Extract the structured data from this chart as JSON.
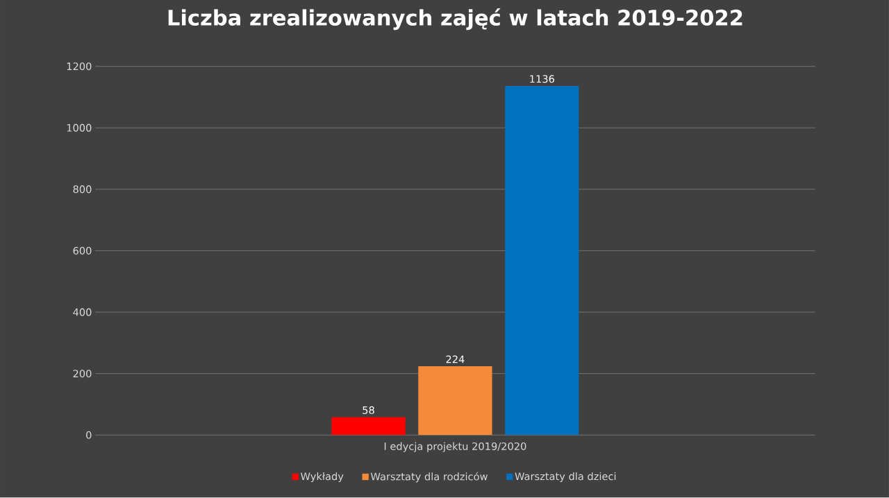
{
  "chart_data": {
    "type": "bar",
    "title": "Liczba zrealizowanych zajęć w latach 2019-2022",
    "categories": [
      "I edycja projektu 2019/2020"
    ],
    "series": [
      {
        "name": "Wykłady",
        "color": "#ff0000",
        "values": [
          58
        ]
      },
      {
        "name": "Warsztaty dla rodziców",
        "color": "#f58a3a",
        "values": [
          224
        ]
      },
      {
        "name": "Warsztaty dla dzieci",
        "color": "#0070c0",
        "values": [
          1136
        ]
      }
    ],
    "ylim": [
      0,
      1200
    ],
    "yticks": [
      0,
      200,
      400,
      600,
      800,
      1000,
      1200
    ],
    "grid": "y",
    "legend": "bottom",
    "data_labels": true
  }
}
